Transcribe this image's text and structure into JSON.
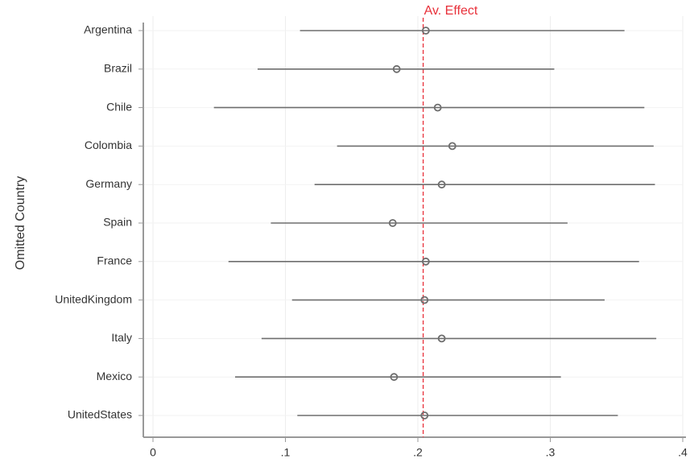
{
  "chart_data": {
    "type": "interval",
    "y_label": "Omitted Country",
    "categories": [
      "Argentina",
      "Brazil",
      "Chile",
      "Colombia",
      "Germany",
      "Spain",
      "France",
      "UnitedKingdom",
      "Italy",
      "Mexico",
      "UnitedStates"
    ],
    "estimates": [
      0.206,
      0.184,
      0.215,
      0.226,
      0.218,
      0.181,
      0.206,
      0.205,
      0.218,
      0.182,
      0.205
    ],
    "lower": [
      0.111,
      0.079,
      0.046,
      0.139,
      0.122,
      0.089,
      0.057,
      0.105,
      0.082,
      0.062,
      0.109
    ],
    "upper": [
      0.356,
      0.303,
      0.371,
      0.378,
      0.379,
      0.313,
      0.367,
      0.341,
      0.38,
      0.308,
      0.351
    ],
    "color": "#6e6e6e",
    "xlim": [
      0,
      0.4
    ],
    "xticks": [
      0,
      {
        "value": 0.1,
        "label": ".1"
      },
      {
        "value": 0.2,
        "label": ".2"
      },
      {
        "value": 0.3,
        "label": ".3"
      },
      {
        "value": 0.4,
        "label": ".4"
      }
    ],
    "grid": true,
    "reference_line": {
      "value": 0.204,
      "label": "Av. Effect",
      "color": "#e8303a"
    }
  }
}
